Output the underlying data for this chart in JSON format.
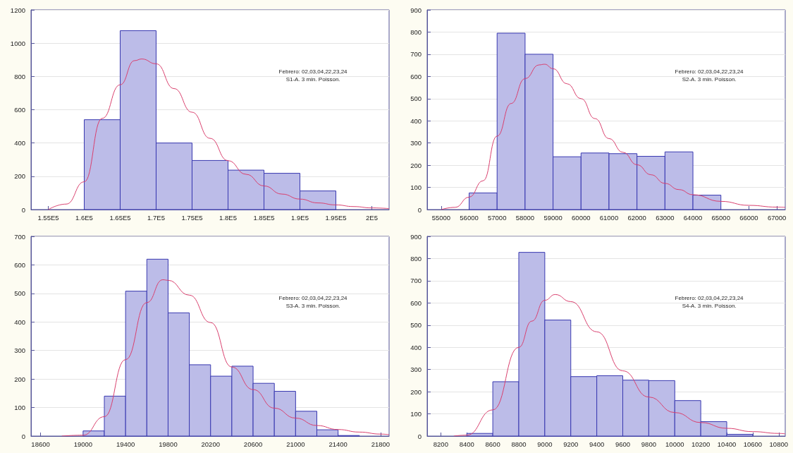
{
  "chart_data": [
    {
      "type": "histogram",
      "bins": [
        160000,
        165000,
        170000,
        175000,
        180000,
        185000,
        190000,
        195000
      ],
      "values": [
        540,
        1075,
        400,
        295,
        237,
        218,
        112
      ],
      "color": "#bcbce8",
      "xlim": [
        152600,
        202400
      ],
      "xticks": [
        {
          "value": 155000,
          "label": "1.55E5"
        },
        {
          "value": 160000,
          "label": "1.6E5"
        },
        {
          "value": 165000,
          "label": "1.65E5"
        },
        {
          "value": 170000,
          "label": "1.7E5"
        },
        {
          "value": 175000,
          "label": "1.75E5"
        },
        {
          "value": 180000,
          "label": "1.8E5"
        },
        {
          "value": 185000,
          "label": "1.85E5"
        },
        {
          "value": 190000,
          "label": "1.9E5"
        },
        {
          "value": 195000,
          "label": "1.95E5"
        },
        {
          "value": 200000,
          "label": "2E5"
        }
      ],
      "ylim": [
        0,
        1200
      ],
      "yticks": [
        0,
        200,
        400,
        600,
        800,
        1000,
        1200
      ],
      "grid": "y",
      "annotations": [
        "Febrero: 02,03,04,22,23,24",
        "S1-A. 3 min. Poisson."
      ],
      "series": [
        {
          "type": "line",
          "color": "#d9406e",
          "x": [
            155000,
            157500,
            160000,
            162500,
            165000,
            167000,
            168000,
            170000,
            172500,
            175000,
            177500,
            180000,
            182500,
            185000,
            187500,
            190000,
            192500,
            195000,
            197500,
            200000,
            202400
          ],
          "values": [
            0,
            33,
            167,
            548,
            750,
            895,
            905,
            876,
            727,
            585,
            428,
            294,
            212,
            142,
            93,
            63,
            40,
            28,
            18,
            10,
            6
          ]
        }
      ]
    },
    {
      "type": "histogram",
      "bins": [
        56000,
        57000,
        58000,
        59000,
        60000,
        61000,
        62000,
        63000,
        64000,
        65000
      ],
      "values": [
        75,
        795,
        700,
        238,
        255,
        252,
        240,
        260,
        65
      ],
      "color": "#bcbce8",
      "xlim": [
        54500,
        67300
      ],
      "xticks": [
        55000,
        56000,
        57000,
        58000,
        59000,
        60000,
        61000,
        62000,
        63000,
        64000,
        65000,
        66000,
        67000
      ],
      "ylim": [
        0,
        900
      ],
      "yticks": [
        0,
        100,
        200,
        300,
        400,
        500,
        600,
        700,
        800,
        900
      ],
      "grid": "y",
      "annotations": [
        "Febrero: 02,03,04,22,23,24",
        "S2-A. 3 min. Poisson."
      ],
      "series": [
        {
          "type": "line",
          "color": "#d9406e",
          "x": [
            55000,
            55500,
            56000,
            56500,
            57000,
            57500,
            58000,
            58500,
            58700,
            59000,
            59500,
            60000,
            60500,
            61000,
            61500,
            62000,
            62500,
            63000,
            63500,
            64000,
            65000,
            66000,
            67000,
            67300
          ],
          "values": [
            0,
            10,
            56,
            130,
            331,
            478,
            590,
            652,
            655,
            635,
            567,
            500,
            410,
            320,
            258,
            202,
            157,
            118,
            90,
            67,
            37,
            19,
            11,
            10
          ]
        }
      ]
    },
    {
      "type": "histogram",
      "bins": [
        19000,
        19200,
        19400,
        19600,
        19800,
        20000,
        20200,
        20400,
        20600,
        20800,
        21000,
        21200,
        21400,
        21600
      ],
      "values": [
        18,
        140,
        508,
        620,
        432,
        250,
        210,
        245,
        185,
        157,
        87,
        22,
        2
      ],
      "color": "#bcbce8",
      "xlim": [
        18510,
        21880
      ],
      "xticks": [
        18600,
        19000,
        19400,
        19800,
        20200,
        20600,
        21000,
        21400,
        21800
      ],
      "ylim": [
        0,
        700
      ],
      "yticks": [
        0,
        100,
        200,
        300,
        400,
        500,
        600,
        700
      ],
      "grid": "y",
      "annotations": [
        "Febrero: 02,03,04,22,23,24",
        "S3-A. 3 min. Poisson."
      ],
      "series": [
        {
          "type": "line",
          "color": "#d9406e",
          "x": [
            18800,
            19000,
            19200,
            19400,
            19600,
            19750,
            19800,
            20000,
            20200,
            20400,
            20600,
            20800,
            21000,
            21200,
            21400,
            21600,
            21800,
            21880
          ],
          "values": [
            0,
            3,
            68,
            268,
            468,
            548,
            546,
            494,
            398,
            242,
            163,
            98,
            63,
            37,
            23,
            14,
            7,
            5
          ]
        }
      ]
    },
    {
      "type": "histogram",
      "bins": [
        8400,
        8600,
        8800,
        9000,
        9200,
        9400,
        9600,
        9800,
        10000,
        10200,
        10400,
        10600
      ],
      "values": [
        12,
        245,
        828,
        523,
        268,
        272,
        252,
        250,
        160,
        65,
        8
      ],
      "color": "#bcbce8",
      "xlim": [
        8095,
        10850
      ],
      "xticks": [
        8200,
        8400,
        8600,
        8800,
        9000,
        9200,
        9400,
        9600,
        9800,
        10000,
        10200,
        10400,
        10600,
        10800
      ],
      "ylim": [
        0,
        900
      ],
      "yticks": [
        0,
        100,
        200,
        300,
        400,
        500,
        600,
        700,
        800,
        900
      ],
      "grid": "y",
      "annotations": [
        "Febrero: 02,03,04,22,23,24",
        "S4-A. 3 min. Poisson."
      ],
      "series": [
        {
          "type": "line",
          "color": "#d9406e",
          "x": [
            8300,
            8400,
            8600,
            8800,
            8900,
            9000,
            9080,
            9200,
            9400,
            9600,
            9800,
            10000,
            10200,
            10400,
            10600,
            10800,
            10850
          ],
          "values": [
            0,
            4,
            118,
            400,
            518,
            612,
            638,
            606,
            470,
            294,
            176,
            106,
            61,
            35,
            20,
            12,
            10
          ]
        }
      ]
    }
  ]
}
